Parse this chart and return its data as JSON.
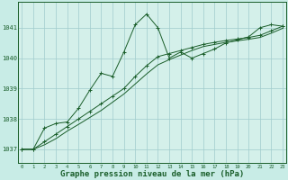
{
  "background_color": "#c8ece6",
  "plot_bg_color": "#d4f0ea",
  "grid_color": "#a0cccc",
  "line_color": "#1a5e2a",
  "xlabel": "Graphe pression niveau de la mer (hPa)",
  "xlabel_fontsize": 6.5,
  "ylabel_ticks": [
    1037,
    1038,
    1039,
    1040,
    1041
  ],
  "xlim": [
    -0.3,
    23.3
  ],
  "ylim": [
    1036.55,
    1041.85
  ],
  "xticks": [
    0,
    1,
    2,
    3,
    4,
    5,
    6,
    7,
    8,
    9,
    10,
    11,
    12,
    13,
    14,
    15,
    16,
    17,
    18,
    19,
    20,
    21,
    22,
    23
  ],
  "series1_x": [
    0,
    1,
    2,
    3,
    4,
    5,
    6,
    7,
    8,
    9,
    10,
    11,
    12,
    13,
    14,
    15,
    16,
    17,
    18,
    19,
    20,
    21,
    22,
    23
  ],
  "series1_y": [
    1037.0,
    1037.0,
    1037.7,
    1037.85,
    1037.9,
    1038.35,
    1038.95,
    1039.5,
    1039.4,
    1040.2,
    1041.1,
    1041.45,
    1041.0,
    1040.0,
    1040.2,
    1040.0,
    1040.15,
    1040.3,
    1040.5,
    1040.6,
    1040.7,
    1041.0,
    1041.1,
    1041.05
  ],
  "series2_x": [
    0,
    1,
    2,
    3,
    4,
    5,
    6,
    7,
    8,
    9,
    10,
    11,
    12,
    13,
    14,
    15,
    16,
    17,
    18,
    19,
    20,
    21,
    22,
    23
  ],
  "series2_y": [
    1037.0,
    1037.0,
    1037.25,
    1037.5,
    1037.75,
    1038.0,
    1038.25,
    1038.5,
    1038.75,
    1039.0,
    1039.4,
    1039.75,
    1040.05,
    1040.15,
    1040.25,
    1040.35,
    1040.45,
    1040.52,
    1040.58,
    1040.63,
    1040.68,
    1040.75,
    1040.9,
    1041.05
  ],
  "series3_x": [
    0,
    1,
    2,
    3,
    4,
    5,
    6,
    7,
    8,
    9,
    10,
    11,
    12,
    13,
    14,
    15,
    16,
    17,
    18,
    19,
    20,
    21,
    22,
    23
  ],
  "series3_y": [
    1037.0,
    1037.0,
    1037.15,
    1037.35,
    1037.6,
    1037.82,
    1038.05,
    1038.28,
    1038.55,
    1038.82,
    1039.15,
    1039.48,
    1039.78,
    1039.95,
    1040.1,
    1040.25,
    1040.38,
    1040.45,
    1040.52,
    1040.57,
    1040.62,
    1040.68,
    1040.82,
    1040.98
  ]
}
